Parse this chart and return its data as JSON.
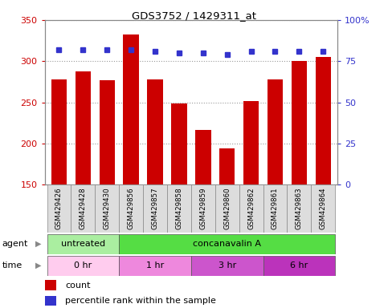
{
  "title": "GDS3752 / 1429311_at",
  "samples": [
    "GSM429426",
    "GSM429428",
    "GSM429430",
    "GSM429856",
    "GSM429857",
    "GSM429858",
    "GSM429859",
    "GSM429860",
    "GSM429862",
    "GSM429861",
    "GSM429863",
    "GSM429864"
  ],
  "counts": [
    278,
    288,
    277,
    332,
    278,
    249,
    217,
    194,
    252,
    278,
    300,
    305
  ],
  "percentile_ranks": [
    82,
    82,
    82,
    82,
    81,
    80,
    80,
    79,
    81,
    81,
    81,
    81
  ],
  "ylim_left": [
    150,
    350
  ],
  "ylim_right": [
    0,
    100
  ],
  "yticks_left": [
    150,
    200,
    250,
    300,
    350
  ],
  "yticks_right": [
    0,
    25,
    50,
    75,
    100
  ],
  "bar_color": "#cc0000",
  "dot_color": "#3333cc",
  "agent_rows": [
    {
      "text": "untreated",
      "start": 0,
      "end": 3,
      "color": "#aaeea0"
    },
    {
      "text": "concanavalin A",
      "start": 3,
      "end": 12,
      "color": "#55dd44"
    }
  ],
  "time_rows": [
    {
      "text": "0 hr",
      "start": 0,
      "end": 3,
      "color": "#ffccee"
    },
    {
      "text": "1 hr",
      "start": 3,
      "end": 6,
      "color": "#ee88dd"
    },
    {
      "text": "3 hr",
      "start": 6,
      "end": 9,
      "color": "#cc55cc"
    },
    {
      "text": "6 hr",
      "start": 9,
      "end": 12,
      "color": "#bb33bb"
    }
  ],
  "grid_linestyle": "dotted",
  "grid_color": "#999999",
  "label_box_color": "#dddddd",
  "label_box_edge": "#888888",
  "bar_bottom": 150,
  "n_samples": 12
}
